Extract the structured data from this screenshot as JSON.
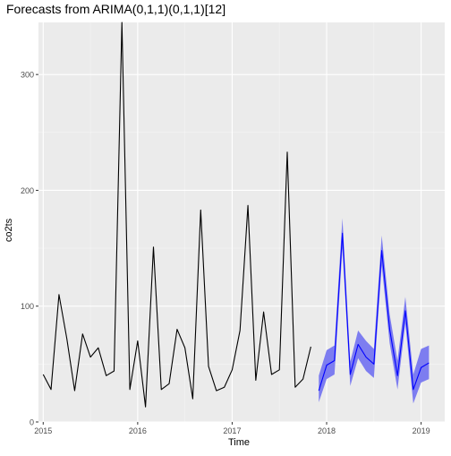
{
  "chart_data": {
    "type": "line",
    "title": "Forecasts from ARIMA(0,1,1)(0,1,1)[12]",
    "xlabel": "Time",
    "ylabel": "co2ts",
    "xlim": [
      2014.95,
      2019.25
    ],
    "ylim": [
      0,
      345
    ],
    "x_ticks": [
      2015,
      2016,
      2017,
      2018,
      2019
    ],
    "x_tick_labels": [
      "2015",
      "2016",
      "2017",
      "2018",
      "2019"
    ],
    "y_ticks": [
      0,
      100,
      200,
      300
    ],
    "y_tick_labels": [
      "0",
      "100",
      "200",
      "300"
    ],
    "grid": true,
    "legend": "none",
    "colors": {
      "panel_bg": "#EBEBEB",
      "grid_major": "#FFFFFF",
      "observed": "#000000",
      "forecast": "#0000FF",
      "interval": "#7D7DF0"
    },
    "series": [
      {
        "values": [
          {
            "x": 2015.0,
            "y": 41
          },
          {
            "x": 2015.083,
            "y": 28
          },
          {
            "x": 2015.167,
            "y": 110
          },
          {
            "x": 2015.25,
            "y": 72
          },
          {
            "x": 2015.333,
            "y": 27
          },
          {
            "x": 2015.417,
            "y": 76
          },
          {
            "x": 2015.5,
            "y": 56
          },
          {
            "x": 2015.583,
            "y": 64
          },
          {
            "x": 2015.667,
            "y": 40
          },
          {
            "x": 2015.75,
            "y": 44
          },
          {
            "x": 2015.833,
            "y": 345
          },
          {
            "x": 2015.917,
            "y": 28
          },
          {
            "x": 2016.0,
            "y": 70
          },
          {
            "x": 2016.083,
            "y": 13
          },
          {
            "x": 2016.167,
            "y": 151
          },
          {
            "x": 2016.25,
            "y": 28
          },
          {
            "x": 2016.333,
            "y": 33
          },
          {
            "x": 2016.417,
            "y": 80
          },
          {
            "x": 2016.5,
            "y": 64
          },
          {
            "x": 2016.583,
            "y": 20
          },
          {
            "x": 2016.667,
            "y": 183
          },
          {
            "x": 2016.75,
            "y": 48
          },
          {
            "x": 2016.833,
            "y": 27
          },
          {
            "x": 2016.917,
            "y": 30
          },
          {
            "x": 2017.0,
            "y": 45
          },
          {
            "x": 2017.083,
            "y": 79
          },
          {
            "x": 2017.167,
            "y": 187
          },
          {
            "x": 2017.25,
            "y": 36
          },
          {
            "x": 2017.333,
            "y": 95
          },
          {
            "x": 2017.417,
            "y": 41
          },
          {
            "x": 2017.5,
            "y": 45
          },
          {
            "x": 2017.583,
            "y": 233
          },
          {
            "x": 2017.667,
            "y": 30
          },
          {
            "x": 2017.75,
            "y": 37
          },
          {
            "x": 2017.833,
            "y": 65
          }
        ]
      },
      {
        "values": [
          {
            "x": 2017.917,
            "y": 27
          },
          {
            "x": 2018.0,
            "y": 49
          },
          {
            "x": 2018.083,
            "y": 53
          },
          {
            "x": 2018.167,
            "y": 163
          },
          {
            "x": 2018.25,
            "y": 41
          },
          {
            "x": 2018.333,
            "y": 67
          },
          {
            "x": 2018.417,
            "y": 56
          },
          {
            "x": 2018.5,
            "y": 50
          },
          {
            "x": 2018.583,
            "y": 148
          },
          {
            "x": 2018.667,
            "y": 80
          },
          {
            "x": 2018.75,
            "y": 40
          },
          {
            "x": 2018.833,
            "y": 96
          },
          {
            "x": 2018.917,
            "y": 28
          },
          {
            "x": 2019.0,
            "y": 47
          },
          {
            "x": 2019.083,
            "y": 51
          }
        ]
      }
    ],
    "interval": {
      "x": [
        2017.917,
        2018.0,
        2018.083,
        2018.167,
        2018.25,
        2018.333,
        2018.417,
        2018.5,
        2018.583,
        2018.667,
        2018.75,
        2018.833,
        2018.917,
        2019.0,
        2019.083
      ],
      "lower": [
        17,
        37,
        41,
        150,
        31,
        55,
        44,
        38,
        135,
        68,
        28,
        85,
        16,
        34,
        37
      ],
      "upper": [
        40,
        62,
        66,
        176,
        52,
        79,
        70,
        63,
        161,
        93,
        53,
        108,
        41,
        63,
        66
      ]
    }
  }
}
